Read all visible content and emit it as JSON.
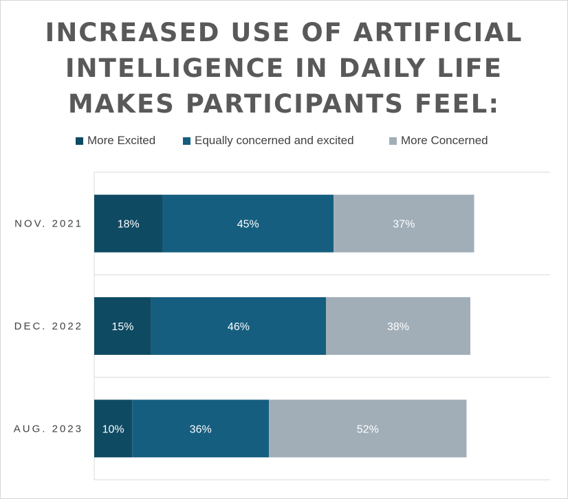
{
  "chart_data": {
    "type": "bar",
    "orientation": "horizontal",
    "stacked": true,
    "title_lines": [
      "INCREASED USE OF ARTIFICIAL",
      "INTELLIGENCE IN DAILY LIFE",
      "MAKES PARTICIPANTS FEEL:"
    ],
    "categories": [
      "NOV. 2021",
      "DEC. 2022",
      "AUG. 2023"
    ],
    "series": [
      {
        "name": "More Excited",
        "color": "#0f4a63",
        "values": [
          18,
          15,
          10
        ]
      },
      {
        "name": "Equally concerned and excited",
        "color": "#155e7f",
        "values": [
          45,
          46,
          36
        ]
      },
      {
        "name": "More Concerned",
        "color": "#a1aeb8",
        "values": [
          37,
          38,
          52
        ]
      }
    ],
    "data_labels": [
      [
        "18%",
        "15%",
        "10%"
      ],
      [
        "45%",
        "46%",
        "36%"
      ],
      [
        "37%",
        "38%",
        "52%"
      ]
    ],
    "xlim": [
      0,
      120
    ],
    "legend_position": "top",
    "grid": "horizontal separators between categories",
    "xlabel": "",
    "ylabel": ""
  }
}
